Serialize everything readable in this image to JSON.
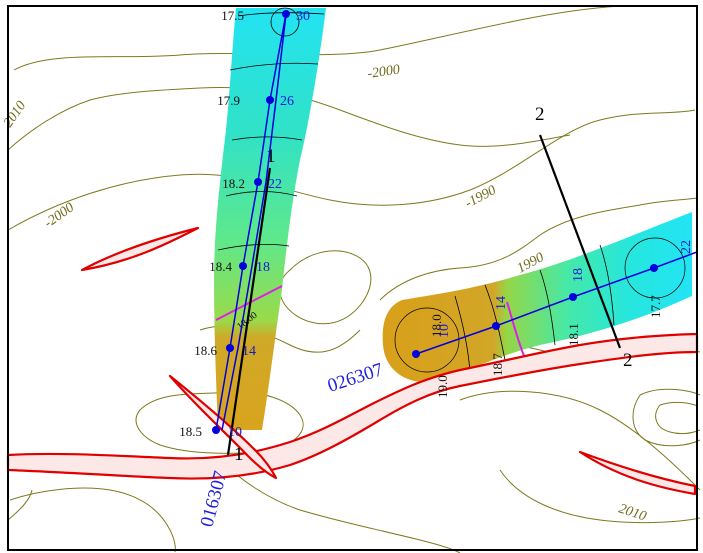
{
  "contour_labels": [
    "-2000",
    "2010",
    "-2000",
    "-1990",
    "1990",
    "2010"
  ],
  "well_1": {
    "name": "016307",
    "depth_labels": [
      "30",
      "26",
      "22",
      "18",
      "14",
      "10"
    ],
    "values": [
      "17.5",
      "17.9",
      "18.2",
      "18.4",
      "18.6",
      "18.5"
    ],
    "curve_label": "18.00"
  },
  "well_2": {
    "name": "026307",
    "depth_labels": [
      "10",
      "14",
      "18",
      "22"
    ],
    "values": [
      "19.0",
      "18.7",
      "18.1",
      "17.7"
    ],
    "curve_label": "18.0"
  },
  "section_1": {
    "top_label": "1",
    "bottom_label": "1"
  },
  "section_2": {
    "top_label": "2",
    "bottom_label": "2"
  },
  "colors": {
    "contour": "#7d7a1e",
    "fault": "#e00000",
    "fault_fill": "#fde8e8",
    "well_path": "#0000dd",
    "attribute_high": "#d9a41e",
    "attribute_low": "#22e6f2"
  }
}
